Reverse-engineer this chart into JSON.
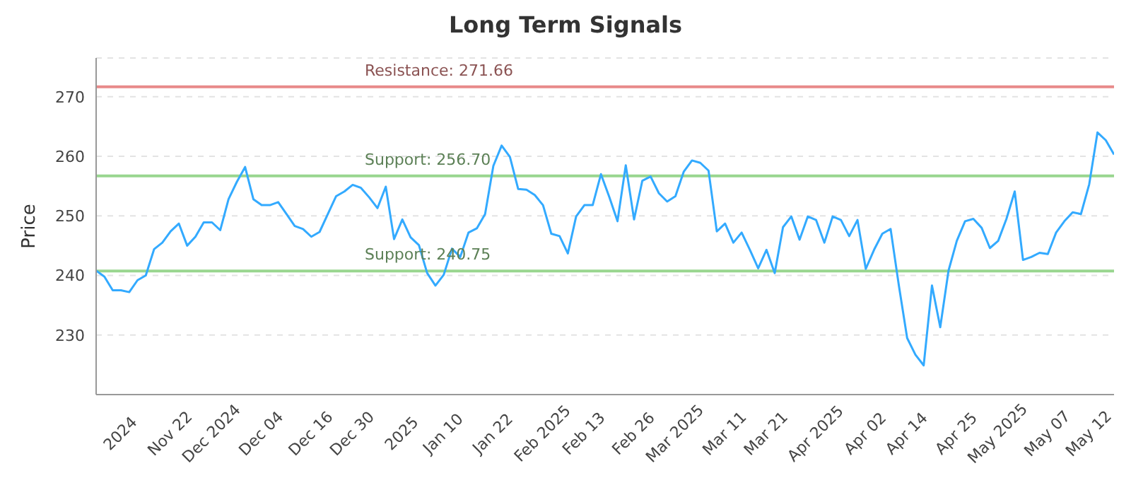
{
  "chart_data": {
    "type": "line",
    "title": "Long Term Signals",
    "ylabel": "Price",
    "categories": [
      null,
      null,
      null,
      "2024",
      null,
      null,
      null,
      null,
      null,
      "Nov 22",
      null,
      null,
      null,
      null,
      "Dec 2024",
      null,
      null,
      null,
      null,
      null,
      "Dec 04",
      null,
      null,
      null,
      null,
      null,
      "Dec 16",
      null,
      null,
      null,
      null,
      "Dec 30",
      null,
      null,
      null,
      null,
      null,
      "2025",
      null,
      null,
      null,
      null,
      "Jan 10",
      null,
      null,
      null,
      null,
      null,
      "Jan 22",
      null,
      null,
      null,
      null,
      null,
      "Feb 2025",
      null,
      null,
      null,
      null,
      "Feb 13",
      null,
      null,
      null,
      null,
      null,
      "Feb 26",
      null,
      null,
      null,
      null,
      "Mar 2025",
      null,
      null,
      null,
      null,
      null,
      "Mar 11",
      null,
      null,
      null,
      null,
      "Mar 21",
      null,
      null,
      null,
      null,
      null,
      "Apr 2025",
      null,
      null,
      null,
      null,
      null,
      "Apr 02",
      null,
      null,
      null,
      null,
      "Apr 14",
      null,
      null,
      null,
      null,
      null,
      "Apr 25",
      null,
      null,
      null,
      null,
      "May 2025",
      null,
      null,
      null,
      null,
      null,
      "May 07",
      null,
      null,
      null,
      null,
      "May 12",
      null,
      null,
      null
    ],
    "series": [
      {
        "color": "#33aaff",
        "values": [
          240.8,
          239.8,
          237.5,
          237.5,
          237.2,
          239.2,
          240.0,
          244.4,
          245.5,
          247.4,
          248.7,
          245.0,
          246.5,
          248.9,
          248.9,
          247.6,
          252.8,
          255.7,
          258.2,
          252.8,
          251.8,
          251.8,
          252.3,
          250.3,
          248.3,
          247.8,
          246.5,
          247.3,
          250.3,
          253.3,
          254.1,
          255.2,
          254.7,
          253.1,
          251.3,
          254.9,
          246.1,
          249.4,
          246.4,
          245.1,
          240.4,
          238.3,
          240.1,
          244.5,
          243.1,
          247.2,
          247.9,
          250.3,
          258.4,
          261.8,
          259.9,
          254.5,
          254.4,
          253.5,
          251.8,
          247.0,
          246.6,
          243.7,
          249.9,
          251.8,
          251.8,
          257.0,
          253.2,
          249.1,
          258.5,
          249.4,
          255.9,
          256.6,
          253.8,
          252.4,
          253.3,
          257.4,
          259.3,
          258.9,
          257.6,
          247.4,
          248.7,
          245.5,
          247.2,
          244.3,
          241.2,
          244.3,
          240.4,
          248.1,
          249.9,
          246.0,
          249.9,
          249.3,
          245.5,
          249.9,
          249.3,
          246.6,
          249.3,
          241.1,
          244.3,
          247.0,
          247.8,
          238.3,
          229.5,
          226.7,
          224.9,
          238.3,
          231.3,
          240.8,
          245.8,
          249.1,
          249.5,
          248.0,
          244.6,
          245.8,
          249.5,
          254.1,
          242.6,
          243.1,
          243.8,
          243.6,
          247.2,
          249.1,
          250.6,
          250.3,
          255.3,
          264.0,
          262.7,
          260.3
        ]
      }
    ],
    "ylim": [
      220,
      276.5
    ],
    "yticks": [
      230,
      240,
      250,
      260,
      270
    ],
    "grid": "y",
    "marker": "none",
    "line_style": "solid",
    "ref_lines": [
      {
        "axis": "y",
        "value": 271.66,
        "label": "Resistance: 271.66",
        "color": "#e88a8a"
      },
      {
        "axis": "y",
        "value": 256.7,
        "label": "Support: 256.70",
        "color": "#99d68f"
      },
      {
        "axis": "y",
        "value": 240.75,
        "label": "Support: 240.75",
        "color": "#99d68f"
      }
    ]
  }
}
